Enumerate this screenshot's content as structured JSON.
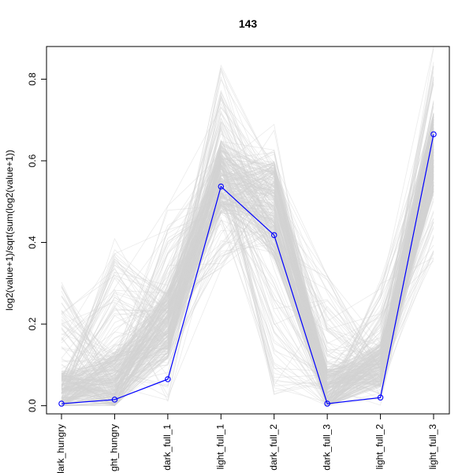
{
  "chart_data": {
    "type": "line",
    "title": "143",
    "xlabel": "",
    "ylabel": "log2(value+1)/sqrt(sum(log2(value+1))",
    "categories": [
      "dark_hungry",
      "light_hungry",
      "dark_full_1",
      "light_full_1",
      "dark_full_2",
      "dark_full_3",
      "light_full_2",
      "light_full_3"
    ],
    "category_labels_visible": [
      "dark_hungry",
      "ght_hungry",
      "dark_full_1",
      "light_full_1",
      "dark_full_2",
      "dark_full_3",
      "light_full_2",
      "light_full_3"
    ],
    "ylim": [
      -0.02,
      0.88
    ],
    "y_ticks": [
      "0.0",
      "0.2",
      "0.4",
      "0.6",
      "0.8"
    ],
    "y_tick_values": [
      0,
      0.2,
      0.4,
      0.6,
      0.8
    ],
    "grid": false,
    "legend": "none",
    "series": [
      {
        "values": [
          0.005,
          0.015,
          0.065,
          0.537,
          0.418,
          0.005,
          0.02,
          0.665
        ],
        "color": "#0000ff",
        "marker": "open-circle",
        "highlighted": true
      }
    ],
    "background_series": {
      "color": "#d3d3d3",
      "count": 300,
      "ranges": [
        [
          0,
          0.31
        ],
        [
          0,
          0.41
        ],
        [
          0,
          0.49
        ],
        [
          0.33,
          0.84
        ],
        [
          0,
          0.69
        ],
        [
          0,
          0.34
        ],
        [
          0,
          0.31
        ],
        [
          0.34,
          0.89
        ]
      ],
      "typical": [
        0.03,
        0.06,
        0.2,
        0.56,
        0.48,
        0.03,
        0.1,
        0.62
      ]
    }
  }
}
